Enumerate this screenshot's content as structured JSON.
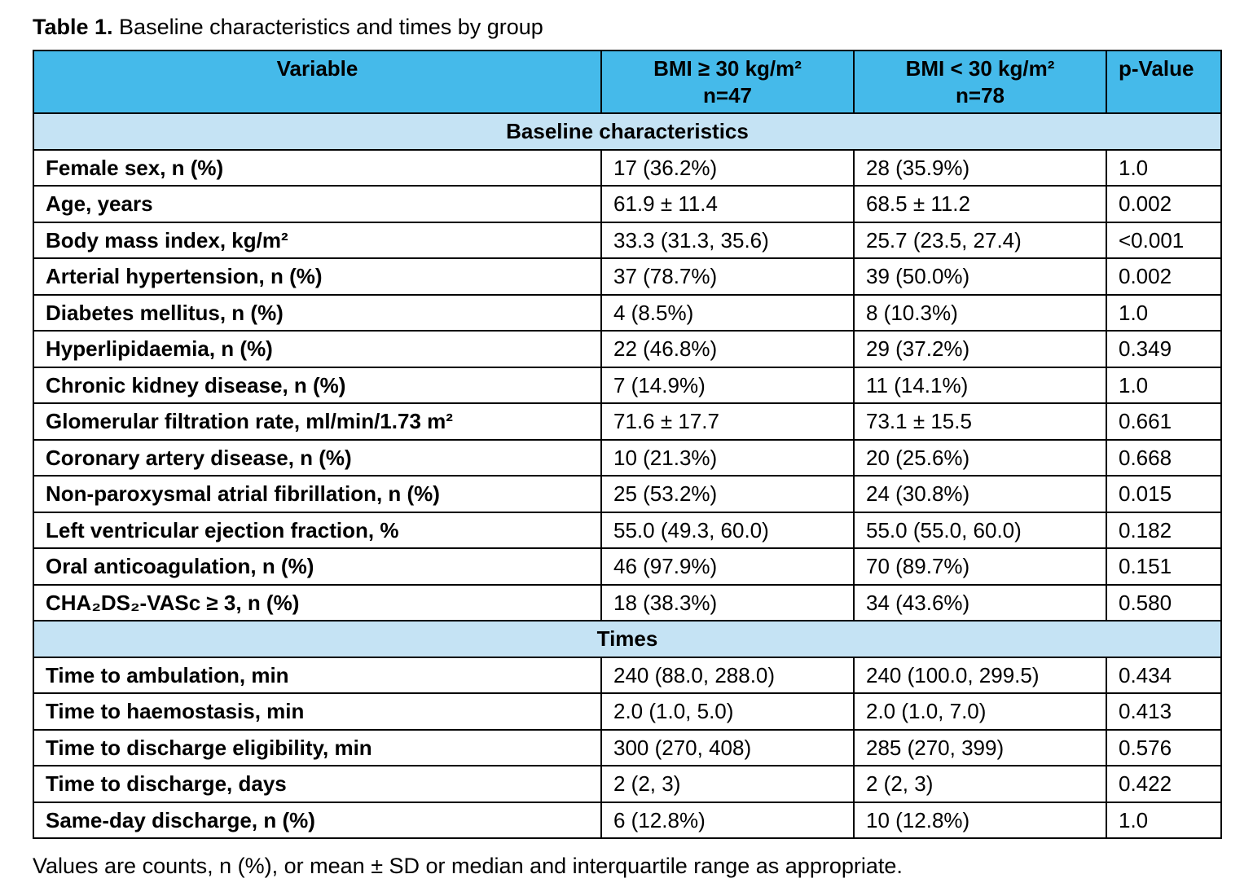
{
  "caption": {
    "label": "Table 1.",
    "text": " Baseline characteristics and times by group"
  },
  "table": {
    "columns": [
      {
        "title": "Variable"
      },
      {
        "line1": "BMI ≥ 30 kg/m²",
        "line2": "n=47"
      },
      {
        "line1": "BMI < 30 kg/m²",
        "line2": "n=78"
      },
      {
        "title": "p-Value"
      }
    ],
    "sections": [
      {
        "title": "Baseline characteristics",
        "rows": [
          {
            "variable": "Female sex, n (%)",
            "group1": "17 (36.2%)",
            "group2": "28 (35.9%)",
            "p": "1.0"
          },
          {
            "variable": "Age, years",
            "group1": "61.9 ± 11.4",
            "group2": "68.5 ± 11.2",
            "p": "0.002"
          },
          {
            "variable": "Body mass index, kg/m²",
            "group1": "33.3 (31.3, 35.6)",
            "group2": "25.7 (23.5, 27.4)",
            "p": "<0.001"
          },
          {
            "variable": "Arterial hypertension, n (%)",
            "group1": "37 (78.7%)",
            "group2": "39 (50.0%)",
            "p": "0.002"
          },
          {
            "variable": "Diabetes mellitus, n (%)",
            "group1": "4 (8.5%)",
            "group2": "8 (10.3%)",
            "p": "1.0"
          },
          {
            "variable": "Hyperlipidaemia, n (%)",
            "group1": "22 (46.8%)",
            "group2": "29 (37.2%)",
            "p": "0.349"
          },
          {
            "variable": "Chronic kidney disease, n (%)",
            "group1": "7 (14.9%)",
            "group2": "11 (14.1%)",
            "p": "1.0"
          },
          {
            "variable": "Glomerular filtration rate, ml/min/1.73 m²",
            "group1": "71.6 ± 17.7",
            "group2": "73.1 ± 15.5",
            "p": "0.661"
          },
          {
            "variable": "Coronary artery disease, n (%)",
            "group1": "10 (21.3%)",
            "group2": "20 (25.6%)",
            "p": "0.668"
          },
          {
            "variable": "Non-paroxysmal atrial fibrillation, n (%)",
            "group1": "25 (53.2%)",
            "group2": "24 (30.8%)",
            "p": "0.015"
          },
          {
            "variable": "Left ventricular ejection fraction, %",
            "group1": "55.0 (49.3, 60.0)",
            "group2": "55.0 (55.0, 60.0)",
            "p": "0.182"
          },
          {
            "variable": "Oral anticoagulation, n (%)",
            "group1": "46 (97.9%)",
            "group2": "70 (89.7%)",
            "p": "0.151"
          },
          {
            "variable": "CHA₂DS₂-VASc ≥ 3, n (%)",
            "group1": "18 (38.3%)",
            "group2": "34 (43.6%)",
            "p": "0.580"
          }
        ]
      },
      {
        "title": "Times",
        "rows": [
          {
            "variable": "Time to ambulation, min",
            "group1": "240 (88.0, 288.0)",
            "group2": "240 (100.0, 299.5)",
            "p": "0.434"
          },
          {
            "variable": "Time to haemostasis, min",
            "group1": "2.0 (1.0, 5.0)",
            "group2": "2.0 (1.0, 7.0)",
            "p": "0.413"
          },
          {
            "variable": "Time to discharge eligibility, min",
            "group1": "300 (270, 408)",
            "group2": "285 (270, 399)",
            "p": "0.576"
          },
          {
            "variable": "Time to discharge, days",
            "group1": "2 (2, 3)",
            "group2": "2 (2, 3)",
            "p": "0.422"
          },
          {
            "variable": "Same-day discharge, n (%)",
            "group1": "6 (12.8%)",
            "group2": "10 (12.8%)",
            "p": "1.0"
          }
        ]
      }
    ]
  },
  "footnote": "Values are counts, n (%), or mean ± SD or median and interquartile range as appropriate.",
  "colors": {
    "header_bg": "#45BAEA",
    "section_bg": "#C5E3F4",
    "border": "#000000"
  }
}
